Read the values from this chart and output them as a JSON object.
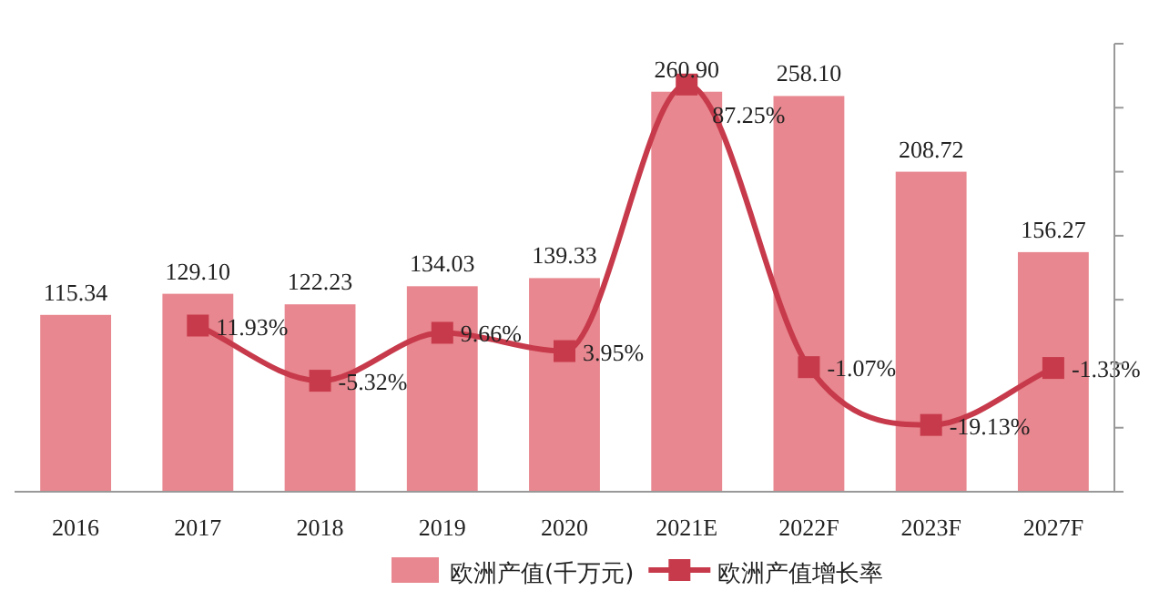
{
  "chart_data": {
    "type": "bar",
    "categories": [
      "2016",
      "2017",
      "2018",
      "2019",
      "2020",
      "2021E",
      "2022F",
      "2023F",
      "2027F"
    ],
    "series": [
      {
        "name": "欧洲产值(千万元)",
        "color": "#e8878f",
        "values": [
          115.34,
          129.1,
          122.23,
          134.03,
          139.33,
          260.9,
          258.1,
          208.72,
          156.27
        ],
        "value_labels": [
          "115.34",
          "129.10",
          "122.23",
          "134.03",
          "139.33",
          "260.90",
          "258.10",
          "208.72",
          "156.27"
        ]
      },
      {
        "name": "欧洲产值增长率",
        "type": "line",
        "axis": "y2",
        "color": "#c73a4b",
        "marker": "square",
        "values": [
          null,
          11.93,
          -5.32,
          9.66,
          3.95,
          87.25,
          -1.07,
          -19.13,
          -1.33
        ],
        "value_labels": [
          null,
          "11.93%",
          "-5.32%",
          "9.66%",
          "3.95%",
          "87.25%",
          "-1.07%",
          "-19.13%",
          "-1.33%"
        ]
      }
    ],
    "data_labels": true,
    "y2lim": [
      -40,
      100
    ],
    "y2ticks": [
      {
        "value": -40,
        "label": null
      },
      {
        "value": -20,
        "label": null
      },
      {
        "value": 0,
        "label": null
      },
      {
        "value": 20,
        "label": null
      },
      {
        "value": 40,
        "label": null
      },
      {
        "value": 60,
        "label": null
      },
      {
        "value": 80,
        "label": null
      },
      {
        "value": 100,
        "label": null
      }
    ],
    "tick_labels": "x",
    "legend": "bottom",
    "grid": false
  }
}
